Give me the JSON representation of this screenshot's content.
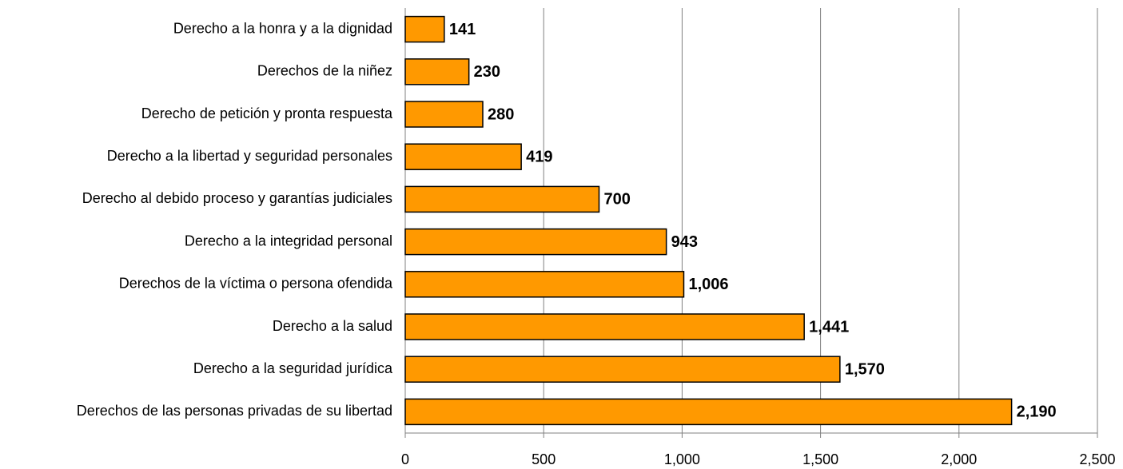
{
  "chart_data": {
    "type": "bar",
    "orientation": "horizontal",
    "categories": [
      "Derecho a la honra y a la dignidad",
      "Derechos de la niñez",
      "Derecho de petición y pronta respuesta",
      "Derecho a la libertad y seguridad personales",
      "Derecho al debido proceso y garantías judiciales",
      "Derecho a la integridad personal",
      "Derechos de la víctima o persona ofendida",
      "Derecho a la salud",
      "Derecho a la seguridad jurídica",
      "Derechos de las personas privadas de su libertad"
    ],
    "values": [
      141,
      230,
      280,
      419,
      700,
      943,
      1006,
      1441,
      1570,
      2190
    ],
    "value_labels": [
      "141",
      "230",
      "280",
      "419",
      "700",
      "943",
      "1,006",
      "1,441",
      "1,570",
      "2,190"
    ],
    "color": "#ff9900",
    "xlim": [
      0,
      2500
    ],
    "xticks": [
      0,
      500,
      {
        "value": 1000,
        "label": "1,000"
      },
      {
        "value": 1500,
        "label": "1,500"
      },
      {
        "value": 2000,
        "label": "2,000"
      },
      {
        "value": 2500,
        "label": "2,500"
      }
    ],
    "grid": true
  }
}
